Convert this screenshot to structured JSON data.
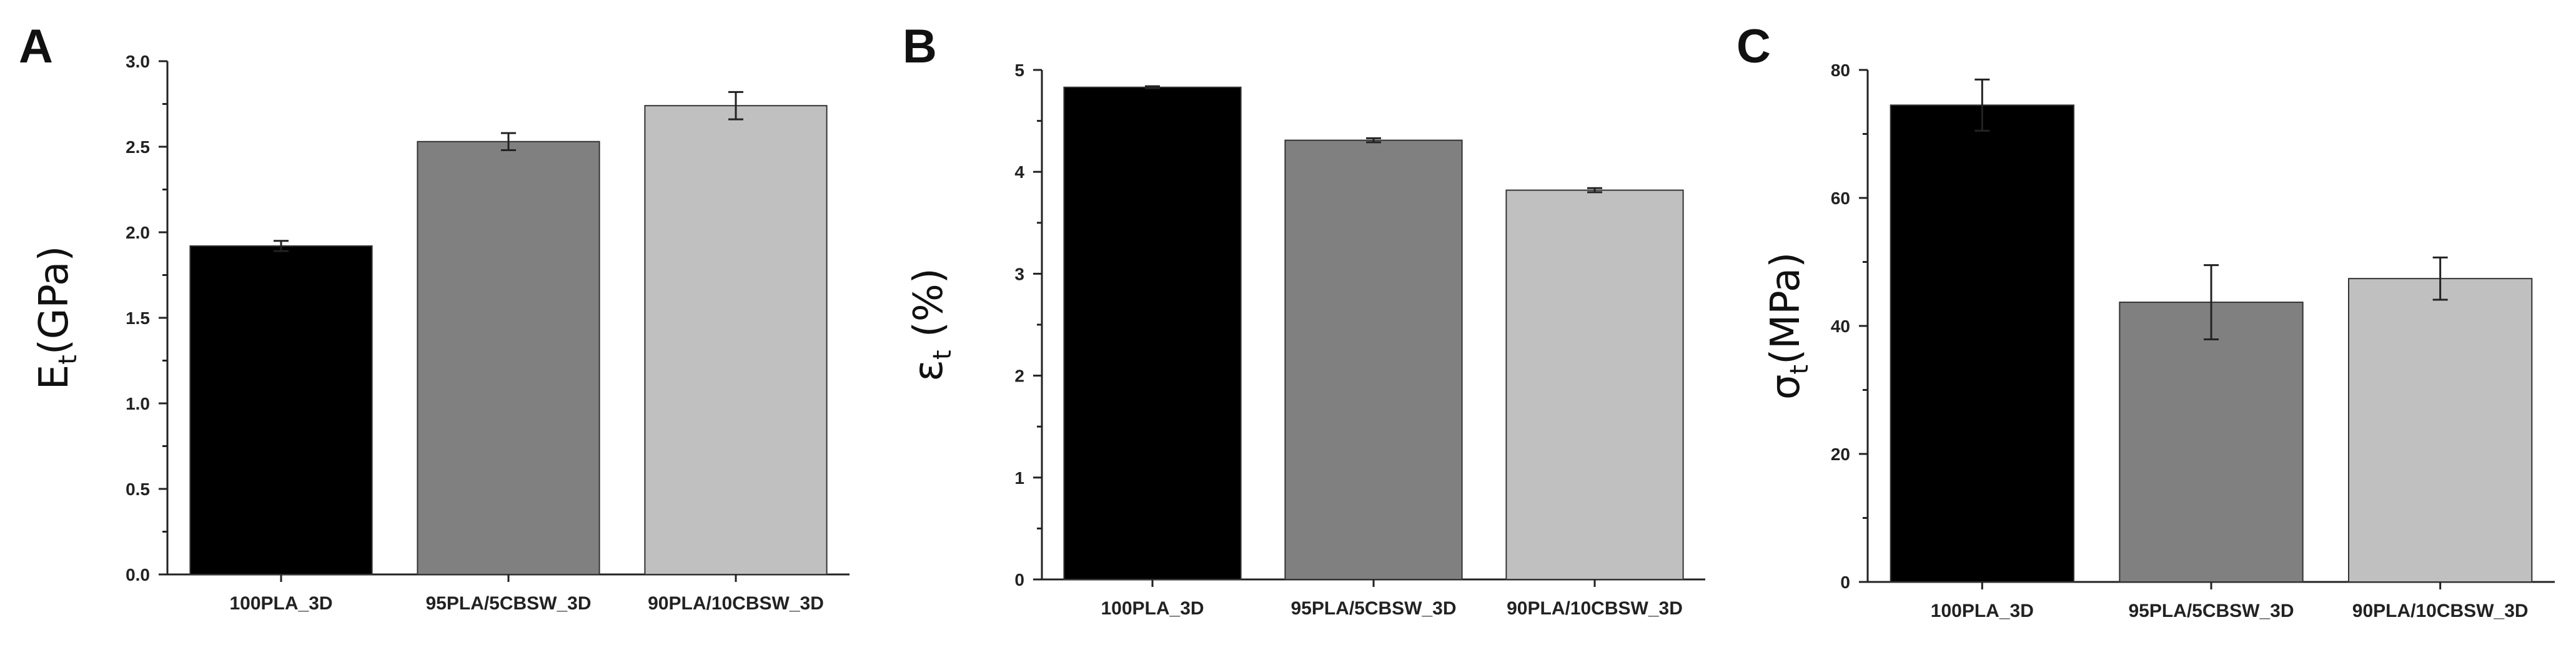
{
  "chart_data": [
    {
      "panel": "A",
      "type": "bar",
      "categories": [
        "100PLA_3D",
        "95PLA/5CBSW_3D",
        "90PLA/10CBSW_3D"
      ],
      "values": [
        1.92,
        2.53,
        2.74
      ],
      "errors": [
        0.03,
        0.05,
        0.08
      ],
      "ylabel_main": "E",
      "ylabel_sub": "t",
      "ylabel_rest": "(GPa)",
      "ylim": [
        0,
        3.0
      ],
      "yticks": [
        "0.0",
        "0.5",
        "1.0",
        "1.5",
        "2.0",
        "2.5",
        "3.0"
      ],
      "ytick_values": [
        0,
        0.5,
        1.0,
        1.5,
        2.0,
        2.5,
        3.0
      ],
      "colors": [
        "#000000",
        "#808080",
        "#c0c0c0"
      ]
    },
    {
      "panel": "B",
      "type": "bar",
      "categories": [
        "100PLA_3D",
        "95PLA/5CBSW_3D",
        "90PLA/10CBSW_3D"
      ],
      "values": [
        4.83,
        4.31,
        3.82
      ],
      "errors": [
        0.01,
        0.02,
        0.02
      ],
      "ylabel_main": "ε",
      "ylabel_sub": "t",
      "ylabel_rest": " (%)",
      "ylim": [
        0,
        5
      ],
      "yticks": [
        "0",
        "1",
        "2",
        "3",
        "4",
        "5"
      ],
      "ytick_values": [
        0,
        1,
        2,
        3,
        4,
        5
      ],
      "colors": [
        "#000000",
        "#808080",
        "#c0c0c0"
      ]
    },
    {
      "panel": "C",
      "type": "bar",
      "categories": [
        "100PLA_3D",
        "95PLA/5CBSW_3D",
        "90PLA/10CBSW_3D"
      ],
      "values": [
        74.5,
        43.7,
        47.4
      ],
      "errors": [
        4.0,
        5.8,
        3.3
      ],
      "ylabel_main": "σ",
      "ylabel_sub": "t",
      "ylabel_rest": "(MPa)",
      "ylim": [
        0,
        80
      ],
      "yticks": [
        "0",
        "20",
        "40",
        "60",
        "80"
      ],
      "ytick_values": [
        0,
        20,
        40,
        60,
        80
      ],
      "colors": [
        "#000000",
        "#808080",
        "#c0c0c0"
      ]
    }
  ]
}
